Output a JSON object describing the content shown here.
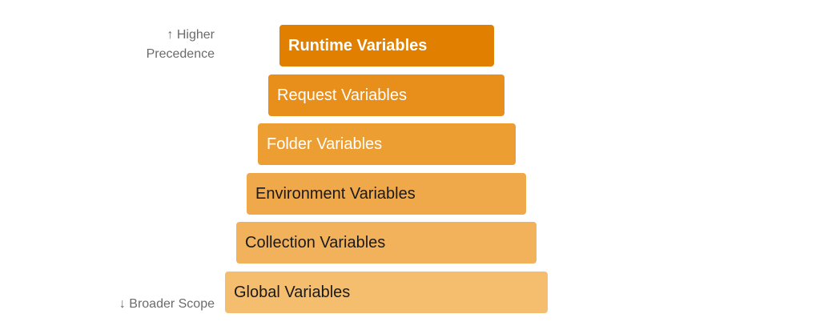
{
  "annotations": {
    "top_arrow": "↑",
    "top_line1": "Higher",
    "top_line2": "Precedence",
    "bottom_arrow": "↓",
    "bottom_text": "Broader Scope"
  },
  "layers": [
    {
      "label": "Runtime Variables",
      "color": "#e07f00",
      "text_color": "#ffffff",
      "bold": true
    },
    {
      "label": "Request Variables",
      "color": "#e88e1a",
      "text_color": "#ffffff",
      "bold": false
    },
    {
      "label": "Folder Variables",
      "color": "#ec9e33",
      "text_color": "#ffffff",
      "bold": false
    },
    {
      "label": "Environment Variables",
      "color": "#efa84a",
      "text_color": "#1a1a1a",
      "bold": false
    },
    {
      "label": "Collection Variables",
      "color": "#f2b25c",
      "text_color": "#1a1a1a",
      "bold": false
    },
    {
      "label": "Global Variables",
      "color": "#f5bd6e",
      "text_color": "#1a1a1a",
      "bold": false
    }
  ]
}
